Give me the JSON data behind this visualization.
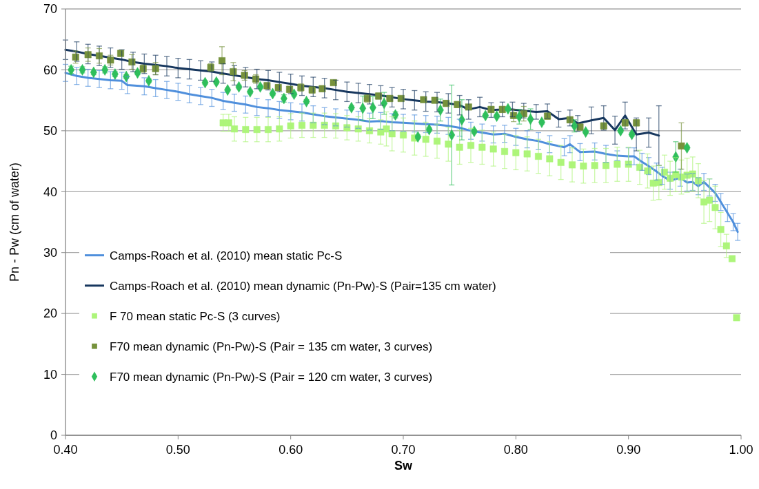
{
  "chart_data": {
    "type": "line",
    "xlabel": "Sw",
    "ylabel": "Pn - Pw (cm of  water)",
    "xlim": [
      0.4,
      1.0
    ],
    "xticks": [
      {
        "value": 0.4,
        "label": "0.40"
      },
      {
        "value": 0.5,
        "label": "0.50"
      },
      {
        "value": 0.6,
        "label": "0.60"
      },
      {
        "value": 0.7,
        "label": "0.70"
      },
      {
        "value": 0.8,
        "label": "0.80"
      },
      {
        "value": 0.9,
        "label": "0.90"
      },
      {
        "value": 1.0,
        "label": "1.00"
      }
    ],
    "ylim": [
      0,
      70
    ],
    "yticks": [
      0,
      10,
      20,
      30,
      40,
      50,
      60,
      70
    ],
    "grid": "y",
    "legend": "left",
    "series": [
      {
        "name": "Camps-Roach et al. (2010) mean static Pc-S",
        "marker": "none",
        "line_style": "solid",
        "color": "#4f8fdc",
        "x": [
          0.4,
          0.41,
          0.42,
          0.43,
          0.44,
          0.45,
          0.455,
          0.47,
          0.48,
          0.49,
          0.5,
          0.51,
          0.52,
          0.53,
          0.54,
          0.55,
          0.56,
          0.57,
          0.58,
          0.59,
          0.6,
          0.61,
          0.62,
          0.63,
          0.64,
          0.65,
          0.66,
          0.67,
          0.68,
          0.69,
          0.7,
          0.71,
          0.72,
          0.73,
          0.74,
          0.75,
          0.76,
          0.77,
          0.78,
          0.79,
          0.8,
          0.81,
          0.82,
          0.83,
          0.843,
          0.848,
          0.857,
          0.87,
          0.88,
          0.89,
          0.9,
          0.905,
          0.912,
          0.918,
          0.925,
          0.93,
          0.937,
          0.946,
          0.952,
          0.957,
          0.962,
          0.967,
          0.972,
          0.977,
          0.982,
          0.988,
          0.993,
          0.997
        ],
        "values": [
          59.5,
          59.0,
          58.7,
          58.5,
          58.3,
          58.2,
          57.5,
          57.3,
          57.0,
          56.7,
          56.4,
          56.0,
          55.7,
          55.4,
          54.9,
          54.6,
          54.3,
          53.9,
          53.7,
          53.4,
          53.2,
          53.0,
          52.7,
          52.4,
          52.2,
          52.0,
          51.8,
          51.5,
          51.6,
          51.4,
          51.3,
          51.2,
          51.1,
          51.0,
          50.8,
          50.5,
          50.0,
          49.7,
          49.4,
          49.5,
          49.0,
          48.6,
          48.3,
          47.8,
          47.3,
          47.8,
          46.5,
          46.6,
          46.2,
          45.9,
          45.8,
          45.8,
          44.9,
          44.2,
          43.3,
          42.6,
          41.8,
          42.3,
          41.5,
          41.6,
          40.9,
          41.6,
          40.7,
          39.8,
          38.3,
          36.5,
          35.0,
          33.4
        ],
        "errors": [
          1.4,
          1.4,
          1.4,
          1.4,
          1.4,
          1.4,
          1.4,
          1.4,
          1.4,
          1.4,
          1.4,
          1.4,
          1.4,
          1.4,
          1.4,
          1.4,
          1.4,
          1.4,
          1.4,
          1.4,
          1.4,
          1.4,
          1.4,
          1.4,
          1.4,
          1.4,
          1.4,
          1.4,
          1.4,
          1.4,
          1.4,
          1.4,
          1.4,
          1.4,
          1.4,
          1.4,
          1.4,
          1.4,
          1.4,
          1.4,
          1.4,
          1.4,
          1.4,
          1.4,
          1.4,
          1.4,
          1.4,
          1.4,
          1.4,
          0.8,
          1.4,
          1.4,
          1.4,
          1.4,
          1.4,
          1.4,
          1.4,
          1.4,
          1.4,
          1.4,
          1.4,
          1.4,
          1.4,
          1.4,
          1.4,
          1.4,
          1.4,
          1.4
        ]
      },
      {
        "name": "Camps-Roach et al. (2010) mean dynamic (Pn-Pw)-S (Pair=135 cm water)",
        "marker": "none",
        "line_style": "solid",
        "color": "#17375e",
        "x": [
          0.4,
          0.41,
          0.42,
          0.43,
          0.44,
          0.45,
          0.46,
          0.47,
          0.48,
          0.49,
          0.5,
          0.51,
          0.52,
          0.53,
          0.54,
          0.55,
          0.56,
          0.57,
          0.58,
          0.59,
          0.6,
          0.61,
          0.62,
          0.63,
          0.64,
          0.65,
          0.66,
          0.67,
          0.68,
          0.69,
          0.7,
          0.71,
          0.72,
          0.73,
          0.74,
          0.75,
          0.758,
          0.768,
          0.778,
          0.788,
          0.797,
          0.807,
          0.818,
          0.828,
          0.838,
          0.848,
          0.855,
          0.867,
          0.878,
          0.888,
          0.897,
          0.907,
          0.918,
          0.927
        ],
        "values": [
          63.3,
          63.0,
          62.6,
          62.3,
          62.0,
          61.7,
          61.3,
          61.0,
          60.8,
          60.6,
          60.3,
          60.1,
          59.9,
          59.7,
          59.4,
          59.1,
          58.8,
          58.5,
          58.3,
          58.0,
          57.7,
          57.4,
          57.2,
          57.0,
          56.7,
          56.4,
          56.2,
          56.0,
          55.8,
          55.5,
          55.2,
          55.0,
          54.8,
          54.7,
          54.5,
          54.2,
          53.5,
          53.9,
          53.4,
          53.5,
          53.5,
          53.3,
          53.1,
          53.2,
          51.9,
          52.1,
          51.2,
          51.7,
          52.1,
          50.1,
          52.5,
          49.4,
          49.7,
          49.2
        ],
        "errors": [
          1.6,
          1.6,
          1.6,
          1.6,
          1.6,
          1.6,
          1.6,
          1.6,
          1.6,
          1.6,
          1.6,
          1.6,
          1.6,
          1.6,
          1.6,
          1.6,
          1.6,
          1.6,
          1.6,
          1.6,
          1.6,
          1.6,
          1.6,
          1.6,
          1.6,
          1.6,
          1.6,
          1.6,
          1.6,
          1.6,
          1.6,
          1.6,
          1.6,
          1.6,
          1.6,
          1.6,
          1.6,
          1.6,
          1.2,
          1.2,
          1.2,
          1.2,
          1.2,
          1.2,
          1.3,
          1.3,
          1.3,
          2.2,
          2.0,
          2.3,
          2.2,
          2.7,
          2.4,
          4.9
        ]
      },
      {
        "name": "F 70 mean static Pc-S (3 curves)",
        "type": "scatter",
        "marker": "square",
        "color": "#adf57a",
        "x": [
          0.54,
          0.545,
          0.55,
          0.56,
          0.57,
          0.58,
          0.59,
          0.6,
          0.61,
          0.62,
          0.63,
          0.64,
          0.65,
          0.66,
          0.67,
          0.68,
          0.685,
          0.69,
          0.7,
          0.71,
          0.72,
          0.73,
          0.74,
          0.75,
          0.76,
          0.77,
          0.78,
          0.79,
          0.8,
          0.81,
          0.82,
          0.83,
          0.84,
          0.85,
          0.86,
          0.87,
          0.88,
          0.89,
          0.9,
          0.91,
          0.917,
          0.922,
          0.927,
          0.932,
          0.937,
          0.942,
          0.947,
          0.952,
          0.957,
          0.962,
          0.967,
          0.972,
          0.977,
          0.982,
          0.987,
          0.992,
          0.996
        ],
        "values": [
          51.3,
          51.3,
          50.3,
          50.2,
          50.2,
          50.2,
          50.3,
          50.8,
          50.9,
          50.9,
          50.9,
          50.8,
          50.5,
          50.3,
          50.0,
          49.8,
          50.3,
          49.5,
          49.3,
          48.8,
          48.6,
          48.3,
          47.8,
          47.3,
          47.6,
          47.3,
          47.0,
          46.6,
          46.4,
          46.2,
          45.8,
          45.4,
          44.8,
          44.4,
          44.2,
          44.3,
          44.3,
          44.5,
          44.5,
          44.0,
          43.4,
          41.4,
          41.5,
          43.2,
          42.2,
          42.8,
          42.4,
          42.7,
          42.9,
          41.8,
          38.3,
          38.6,
          37.4,
          33.8,
          31.1,
          29.0,
          19.3
        ],
        "errors": [
          1.4,
          1.4,
          2.0,
          2.0,
          2.0,
          2.0,
          2.0,
          2.0,
          2.0,
          2.0,
          2.0,
          2.0,
          2.0,
          2.0,
          2.0,
          2.0,
          2.8,
          2.8,
          2.8,
          2.8,
          2.8,
          2.8,
          2.8,
          2.8,
          2.8,
          2.8,
          2.8,
          2.8,
          2.8,
          2.8,
          2.8,
          2.8,
          2.8,
          2.8,
          2.8,
          2.8,
          2.8,
          2.8,
          2.8,
          2.8,
          2.8,
          2.8,
          2.8,
          2.8,
          2.8,
          2.8,
          2.8,
          2.8,
          2.8,
          2.8,
          3.5,
          3.5,
          3.5,
          2.8,
          1.9,
          null,
          null
        ]
      },
      {
        "name": "F70 mean dynamic (Pn-Pw)-S (Pair = 135 cm water, 3 curves)",
        "type": "scatter",
        "marker": "square",
        "color": "#76923c",
        "x": [
          0.409,
          0.42,
          0.43,
          0.44,
          0.449,
          0.459,
          0.469,
          0.48,
          0.529,
          0.539,
          0.549,
          0.559,
          0.569,
          0.579,
          0.589,
          0.599,
          0.609,
          0.619,
          0.628,
          0.638,
          0.668,
          0.678,
          0.688,
          0.698,
          0.718,
          0.728,
          0.738,
          0.748,
          0.758,
          0.778,
          0.788,
          0.798,
          0.807,
          0.828,
          0.848,
          0.857,
          0.878,
          0.897,
          0.907,
          0.947
        ],
        "values": [
          62.1,
          62.5,
          62.3,
          61.6,
          62.7,
          61.3,
          60.2,
          60.2,
          60.4,
          61.5,
          59.7,
          59.1,
          58.5,
          57.4,
          57.1,
          56.8,
          57.1,
          56.7,
          56.9,
          57.9,
          55.3,
          55.7,
          55.3,
          55.3,
          55.1,
          55.0,
          54.5,
          54.3,
          53.9,
          53.5,
          53.5,
          52.5,
          52.8,
          52.4,
          51.8,
          50.6,
          50.8,
          51.3,
          51.3,
          47.5
        ],
        "errors": [
          1.0,
          1.1,
          1.2,
          0.8,
          0.5,
          1.2,
          0.6,
          1.0,
          0.6,
          2.3,
          1.5,
          0.8,
          0.7,
          0.5,
          0.5,
          0.5,
          0.6,
          0.5,
          0.5,
          0.3,
          0.6,
          0.5,
          0.5,
          0.3,
          0.4,
          0.3,
          0.5,
          0.5,
          0.3,
          0.5,
          0.5,
          1.0,
          1.2,
          0.5,
          0.5,
          0.5,
          0.5,
          0.5,
          0.5,
          3.8
        ]
      },
      {
        "name": "F70 mean dynamic (Pn-Pw)-S (Pair = 120 cm water, 3 curves)",
        "type": "scatter",
        "marker": "diamond",
        "color": "#2fbf5c",
        "x": [
          0.405,
          0.415,
          0.425,
          0.435,
          0.444,
          0.454,
          0.464,
          0.474,
          0.524,
          0.534,
          0.544,
          0.554,
          0.564,
          0.573,
          0.584,
          0.594,
          0.603,
          0.614,
          0.654,
          0.664,
          0.673,
          0.683,
          0.693,
          0.713,
          0.723,
          0.733,
          0.743,
          0.752,
          0.763,
          0.773,
          0.783,
          0.793,
          0.803,
          0.813,
          0.823,
          0.852,
          0.862,
          0.893,
          0.903,
          0.942,
          0.952
        ],
        "values": [
          60.0,
          60.0,
          59.6,
          60.0,
          59.3,
          58.9,
          59.5,
          58.2,
          57.9,
          58.0,
          56.7,
          57.2,
          56.4,
          57.2,
          56.1,
          55.3,
          56.0,
          54.8,
          53.8,
          53.7,
          53.8,
          54.5,
          52.6,
          49.0,
          50.2,
          53.4,
          49.3,
          51.8,
          49.9,
          52.5,
          52.4,
          53.6,
          52.3,
          51.9,
          51.4,
          50.8,
          49.8,
          50.0,
          49.4,
          45.7,
          47.2
        ],
        "errors": [
          0.6,
          0.5,
          0.4,
          0.5,
          0.4,
          0.3,
          0.3,
          0.3,
          0.3,
          0.3,
          0.3,
          0.3,
          0.3,
          0.3,
          0.3,
          0.6,
          0.3,
          0.3,
          0.3,
          2.0,
          1.8,
          1.8,
          0.5,
          0.3,
          0.3,
          1.8,
          8.2,
          3.3,
          0.3,
          0.3,
          0.3,
          0.3,
          1.2,
          1.7,
          0.3,
          1.0,
          0.3,
          0.3,
          0.3,
          2.5,
          0.3
        ]
      }
    ]
  }
}
